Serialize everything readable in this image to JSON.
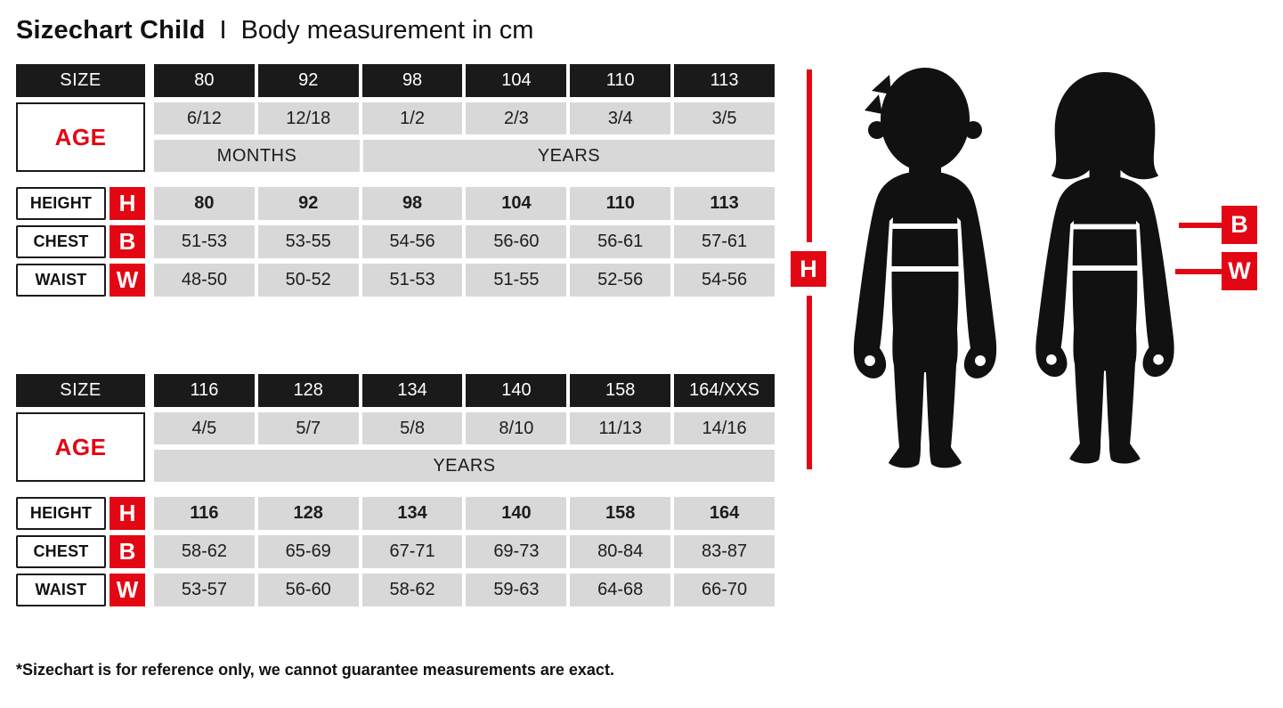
{
  "title": {
    "main": "Sizechart Child",
    "separator": "I",
    "subtitle": "Body measurement in cm"
  },
  "footnote": "*Sizechart is for reference only, we cannot guarantee measurements are exact.",
  "colors": {
    "accent_red": "#e30613",
    "header_black": "#1a1a1a",
    "cell_gray": "#d8d8d8"
  },
  "labels": {
    "size": "SIZE",
    "age": "AGE",
    "height": "HEIGHT",
    "chest": "CHEST",
    "waist": "WAIST",
    "h": "H",
    "b": "B",
    "w": "W"
  },
  "tables": [
    {
      "sizes": [
        "80",
        "92",
        "98",
        "104",
        "110",
        "113"
      ],
      "ages": [
        "6/12",
        "12/18",
        "1/2",
        "2/3",
        "3/4",
        "3/5"
      ],
      "age_units": [
        {
          "label": "MONTHS",
          "span": 2
        },
        {
          "label": "YEARS",
          "span": 4
        }
      ],
      "height": [
        "80",
        "92",
        "98",
        "104",
        "110",
        "113"
      ],
      "chest": [
        "51-53",
        "53-55",
        "54-56",
        "56-60",
        "56-61",
        "57-61"
      ],
      "waist": [
        "48-50",
        "50-52",
        "51-53",
        "51-55",
        "52-56",
        "54-56"
      ]
    },
    {
      "sizes": [
        "116",
        "128",
        "134",
        "140",
        "158",
        "164/XXS"
      ],
      "ages": [
        "4/5",
        "5/7",
        "5/8",
        "8/10",
        "11/13",
        "14/16"
      ],
      "age_units": [
        {
          "label": "YEARS",
          "span": 6
        }
      ],
      "height": [
        "116",
        "128",
        "134",
        "140",
        "158",
        "164"
      ],
      "chest": [
        "58-62",
        "65-69",
        "67-71",
        "69-73",
        "80-84",
        "83-87"
      ],
      "waist": [
        "53-57",
        "56-60",
        "58-62",
        "59-63",
        "64-68",
        "66-70"
      ]
    }
  ]
}
